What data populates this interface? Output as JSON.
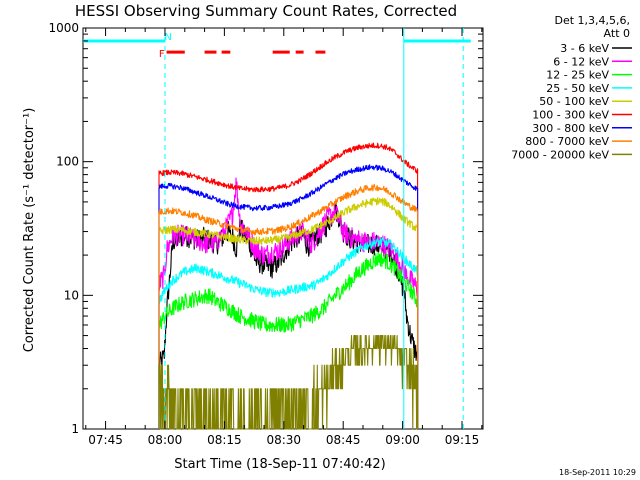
{
  "chart_data": {
    "type": "line",
    "title": "HESSI Observing Summary Count Rates, Corrected",
    "xlabel": "Start Time (18-Sep-11 07:40:42)",
    "ylabel": "Corrected Count Rate (s⁻¹ detector⁻¹)",
    "yscale": "log",
    "ylim": [
      1,
      1000
    ],
    "xlim_minutes": [
      -5.7,
      95.3
    ],
    "x_ticks": [
      {
        "label": "07:45",
        "min": 0
      },
      {
        "label": "08:00",
        "min": 15
      },
      {
        "label": "08:15",
        "min": 30
      },
      {
        "label": "08:30",
        "min": 45
      },
      {
        "label": "08:45",
        "min": 60
      },
      {
        "label": "09:00",
        "min": 75
      },
      {
        "label": "09:15",
        "min": 90
      }
    ],
    "y_ticks": [
      {
        "label": "1",
        "value": 1
      },
      {
        "label": "10",
        "value": 10
      },
      {
        "label": "100",
        "value": 100
      },
      {
        "label": "1000",
        "value": 1000
      }
    ],
    "legend_header": [
      "Det 1,3,4,5,6,",
      "Att 0"
    ],
    "legend_position": "outside-right",
    "data_window_minutes": [
      13.5,
      78.8
    ],
    "series": [
      {
        "name": "3 - 6 keV",
        "color": "#000000",
        "points": [
          [
            13.5,
            3
          ],
          [
            14.8,
            3.5
          ],
          [
            15.5,
            8
          ],
          [
            17,
            25
          ],
          [
            20,
            28
          ],
          [
            23,
            26
          ],
          [
            25,
            27
          ],
          [
            28,
            24
          ],
          [
            31,
            30
          ],
          [
            32,
            28
          ],
          [
            33,
            22
          ],
          [
            34,
            33
          ],
          [
            35,
            28
          ],
          [
            36,
            26
          ],
          [
            38,
            18
          ],
          [
            40,
            17
          ],
          [
            42,
            16
          ],
          [
            44,
            18
          ],
          [
            46,
            23
          ],
          [
            48,
            27
          ],
          [
            50,
            28
          ],
          [
            51,
            23
          ],
          [
            53,
            27
          ],
          [
            55,
            30
          ],
          [
            57,
            38
          ],
          [
            58,
            45
          ],
          [
            59,
            38
          ],
          [
            60,
            30
          ],
          [
            62,
            26
          ],
          [
            65,
            24
          ],
          [
            68,
            24
          ],
          [
            70,
            23
          ],
          [
            72,
            21
          ],
          [
            74,
            15
          ],
          [
            75.5,
            10
          ],
          [
            76,
            7
          ],
          [
            77,
            5
          ],
          [
            78,
            4
          ],
          [
            78.8,
            3.5
          ]
        ]
      },
      {
        "name": "6 - 12 keV",
        "color": "#ff00ff",
        "points": [
          [
            13.5,
            12
          ],
          [
            14.8,
            14
          ],
          [
            15.5,
            22
          ],
          [
            17,
            28
          ],
          [
            20,
            28
          ],
          [
            23,
            26
          ],
          [
            26,
            24
          ],
          [
            28,
            25
          ],
          [
            30,
            30
          ],
          [
            32,
            40
          ],
          [
            33,
            70
          ],
          [
            34,
            35
          ],
          [
            36,
            28
          ],
          [
            38,
            22
          ],
          [
            40,
            20
          ],
          [
            42,
            21
          ],
          [
            44,
            22
          ],
          [
            46,
            25
          ],
          [
            48,
            28
          ],
          [
            50,
            30
          ],
          [
            52,
            24
          ],
          [
            54,
            30
          ],
          [
            56,
            38
          ],
          [
            58,
            42
          ],
          [
            60,
            30
          ],
          [
            62,
            27
          ],
          [
            64,
            26
          ],
          [
            66,
            25
          ],
          [
            68,
            25
          ],
          [
            70,
            24
          ],
          [
            72,
            22
          ],
          [
            74,
            18
          ],
          [
            76,
            14
          ],
          [
            78,
            12
          ],
          [
            78.8,
            11
          ]
        ]
      },
      {
        "name": "12 - 25 keV",
        "color": "#00ff00",
        "points": [
          [
            13.5,
            6
          ],
          [
            15,
            7
          ],
          [
            17,
            8
          ],
          [
            20,
            9
          ],
          [
            23,
            9.5
          ],
          [
            26,
            10
          ],
          [
            28,
            9
          ],
          [
            31,
            8
          ],
          [
            34,
            7
          ],
          [
            37,
            6.5
          ],
          [
            40,
            6
          ],
          [
            43,
            6
          ],
          [
            46,
            6
          ],
          [
            49,
            6.5
          ],
          [
            52,
            7
          ],
          [
            55,
            8
          ],
          [
            58,
            10
          ],
          [
            61,
            12
          ],
          [
            64,
            15
          ],
          [
            67,
            17.5
          ],
          [
            69,
            19
          ],
          [
            71,
            18
          ],
          [
            73,
            16
          ],
          [
            75,
            13
          ],
          [
            77,
            11
          ],
          [
            78.8,
            9
          ]
        ]
      },
      {
        "name": "25 - 50 keV",
        "color": "#00ffff",
        "points": [
          [
            13.5,
            9
          ],
          [
            15,
            11
          ],
          [
            17,
            13
          ],
          [
            20,
            15
          ],
          [
            23,
            16
          ],
          [
            26,
            15
          ],
          [
            29,
            14
          ],
          [
            32,
            13
          ],
          [
            35,
            12
          ],
          [
            38,
            11
          ],
          [
            41,
            10.5
          ],
          [
            44,
            10.5
          ],
          [
            47,
            11
          ],
          [
            50,
            11.5
          ],
          [
            53,
            12
          ],
          [
            56,
            14
          ],
          [
            59,
            17
          ],
          [
            62,
            20
          ],
          [
            65,
            23
          ],
          [
            68,
            25
          ],
          [
            70,
            25
          ],
          [
            72,
            24
          ],
          [
            74,
            21
          ],
          [
            76,
            18
          ],
          [
            78.8,
            15
          ]
        ]
      },
      {
        "name": "50 - 100 keV",
        "color": "#cccc00",
        "points": [
          [
            13.5,
            30
          ],
          [
            16,
            31
          ],
          [
            19,
            31
          ],
          [
            22,
            30
          ],
          [
            25,
            29
          ],
          [
            28,
            28
          ],
          [
            31,
            27
          ],
          [
            34,
            26
          ],
          [
            37,
            25.5
          ],
          [
            40,
            25.5
          ],
          [
            43,
            26
          ],
          [
            46,
            27
          ],
          [
            49,
            29
          ],
          [
            52,
            31
          ],
          [
            55,
            34
          ],
          [
            58,
            38
          ],
          [
            61,
            43
          ],
          [
            64,
            47
          ],
          [
            67,
            50
          ],
          [
            69,
            51
          ],
          [
            71,
            49
          ],
          [
            73,
            44
          ],
          [
            75,
            38
          ],
          [
            77,
            34
          ],
          [
            78.8,
            31
          ]
        ]
      },
      {
        "name": "100 - 300 keV",
        "color": "#ff0000",
        "points": [
          [
            13.5,
            82
          ],
          [
            16,
            83
          ],
          [
            19,
            82
          ],
          [
            22,
            78
          ],
          [
            25,
            74
          ],
          [
            28,
            70
          ],
          [
            31,
            66
          ],
          [
            34,
            63
          ],
          [
            37,
            62
          ],
          [
            40,
            62
          ],
          [
            43,
            63
          ],
          [
            46,
            66
          ],
          [
            49,
            72
          ],
          [
            52,
            82
          ],
          [
            55,
            95
          ],
          [
            58,
            108
          ],
          [
            61,
            120
          ],
          [
            64,
            128
          ],
          [
            67,
            132
          ],
          [
            69,
            132
          ],
          [
            71,
            128
          ],
          [
            73,
            118
          ],
          [
            75,
            103
          ],
          [
            77,
            92
          ],
          [
            78.8,
            85
          ]
        ]
      },
      {
        "name": "300 - 800 keV",
        "color": "#0000ff",
        "points": [
          [
            13.5,
            65
          ],
          [
            16,
            66
          ],
          [
            19,
            64
          ],
          [
            22,
            60
          ],
          [
            25,
            56
          ],
          [
            28,
            52
          ],
          [
            31,
            48
          ],
          [
            34,
            46
          ],
          [
            37,
            45
          ],
          [
            40,
            45
          ],
          [
            43,
            46
          ],
          [
            46,
            48
          ],
          [
            49,
            52
          ],
          [
            52,
            58
          ],
          [
            55,
            66
          ],
          [
            58,
            75
          ],
          [
            61,
            83
          ],
          [
            64,
            88
          ],
          [
            67,
            91
          ],
          [
            69,
            90
          ],
          [
            71,
            87
          ],
          [
            73,
            81
          ],
          [
            75,
            73
          ],
          [
            77,
            67
          ],
          [
            78.8,
            62
          ]
        ]
      },
      {
        "name": "800 - 7000 keV",
        "color": "#ff8000",
        "points": [
          [
            13.5,
            42
          ],
          [
            16,
            43
          ],
          [
            19,
            42
          ],
          [
            22,
            40
          ],
          [
            25,
            37
          ],
          [
            28,
            35
          ],
          [
            31,
            33
          ],
          [
            34,
            31
          ],
          [
            37,
            30
          ],
          [
            40,
            30
          ],
          [
            43,
            30.5
          ],
          [
            46,
            32
          ],
          [
            49,
            35
          ],
          [
            52,
            39
          ],
          [
            55,
            44
          ],
          [
            58,
            50
          ],
          [
            61,
            56
          ],
          [
            64,
            61
          ],
          [
            67,
            64
          ],
          [
            69,
            64
          ],
          [
            71,
            61
          ],
          [
            73,
            56
          ],
          [
            75,
            50
          ],
          [
            77,
            46
          ],
          [
            78.8,
            43
          ]
        ]
      },
      {
        "name": "7000 - 20000 keV",
        "color": "#808000",
        "points": [
          [
            13.5,
            2.2
          ],
          [
            15,
            2
          ],
          [
            17,
            1.6
          ],
          [
            19,
            1.5
          ],
          [
            21,
            1.3
          ],
          [
            23,
            1.5
          ],
          [
            25,
            1.3
          ],
          [
            27,
            1.2
          ],
          [
            29,
            1.3
          ],
          [
            31,
            1.2
          ],
          [
            33,
            1.1
          ],
          [
            35,
            1.05
          ],
          [
            37,
            1.05
          ],
          [
            39,
            1.1
          ],
          [
            41,
            1.2
          ],
          [
            43,
            1.3
          ],
          [
            45,
            1.4
          ],
          [
            47,
            1.4
          ],
          [
            49,
            1.3
          ],
          [
            51,
            1.5
          ],
          [
            53,
            1.6
          ],
          [
            55,
            1.8
          ],
          [
            57,
            2.5
          ],
          [
            59,
            3
          ],
          [
            61,
            3.5
          ],
          [
            63,
            3.8
          ],
          [
            65,
            4
          ],
          [
            67,
            4.2
          ],
          [
            69,
            4.5
          ],
          [
            71,
            4.3
          ],
          [
            73,
            4
          ],
          [
            75,
            3.3
          ],
          [
            77,
            2.6
          ],
          [
            78.8,
            2.2
          ]
        ]
      }
    ],
    "vertical_lines": [
      {
        "min": 15,
        "color": "#00ffff",
        "style": "dashed"
      },
      {
        "min": 75.3,
        "color": "#00ffff",
        "style": "solid"
      },
      {
        "min": 90.3,
        "color": "#00ffff",
        "style": "dashed"
      }
    ],
    "night_bars": {
      "color": "#00ffff",
      "value": 800,
      "segments": [
        [
          -5.7,
          15
        ],
        [
          75.3,
          92.2
        ]
      ]
    },
    "flare_bars": {
      "color": "#ff0000",
      "value": 660,
      "segments": [
        [
          15.4,
          20
        ],
        [
          25,
          28
        ],
        [
          29.3,
          31.5
        ],
        [
          42.2,
          46.5
        ],
        [
          48,
          50
        ],
        [
          53,
          55.5
        ]
      ]
    },
    "markers": [
      {
        "label": "F",
        "min": 14.2,
        "value": 650,
        "color": "#ff0000"
      },
      {
        "label": "N",
        "min": 15.8,
        "value": 870,
        "color": "#00ffff"
      }
    ]
  },
  "footer": {
    "timestamp": "18-Sep-2011 10:29"
  }
}
